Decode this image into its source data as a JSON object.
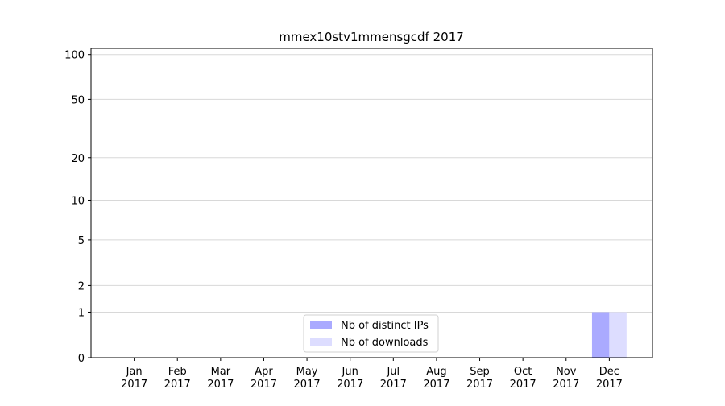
{
  "chart_data": {
    "type": "bar",
    "title": "mmex10stv1mmensgcdf 2017",
    "categories": [
      "Jan 2017",
      "Feb 2017",
      "Mar 2017",
      "Apr 2017",
      "May 2017",
      "Jun 2017",
      "Jul 2017",
      "Aug 2017",
      "Sep 2017",
      "Oct 2017",
      "Nov 2017",
      "Dec 2017"
    ],
    "series": [
      {
        "name": "Nb of distinct IPs",
        "color": "#aaaaff",
        "values": [
          0,
          0,
          0,
          0,
          0,
          0,
          0,
          0,
          0,
          0,
          0,
          1
        ]
      },
      {
        "name": "Nb of downloads",
        "color": "#ddddff",
        "values": [
          0,
          0,
          0,
          0,
          0,
          0,
          0,
          0,
          0,
          0,
          0,
          1
        ]
      }
    ],
    "yscale": "log1p",
    "ylim": [
      0,
      110
    ],
    "yticks": [
      0,
      1,
      2,
      5,
      10,
      20,
      50,
      100
    ],
    "grid": true,
    "legend": "lower center"
  }
}
